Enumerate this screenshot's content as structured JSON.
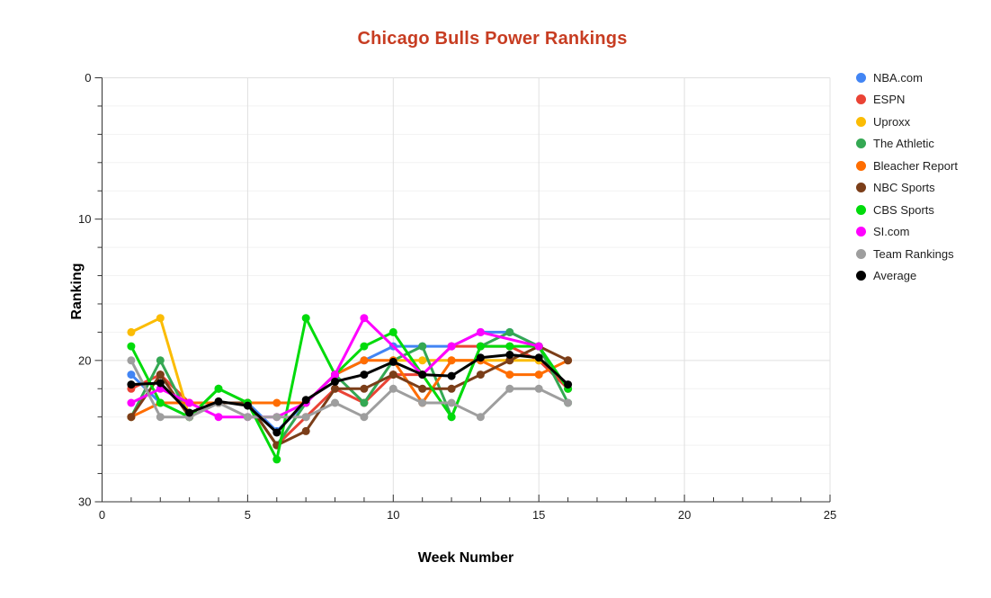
{
  "chart_data": {
    "type": "line",
    "title": "Chicago Bulls Power Rankings",
    "title_color": "#C73D22",
    "xlabel": "Week Number",
    "ylabel": "Ranking",
    "x": [
      1,
      2,
      3,
      4,
      5,
      6,
      7,
      8,
      9,
      10,
      11,
      12,
      13,
      14,
      15,
      16
    ],
    "xlim": [
      0,
      25
    ],
    "ylim": [
      0,
      30
    ],
    "y_axis_inverted": true,
    "x_ticks": [
      0,
      5,
      10,
      15,
      20,
      25
    ],
    "x_minor_tick_step": 1,
    "y_ticks": [
      0,
      10,
      20,
      30
    ],
    "y_minor_tick_step": 2,
    "grid": true,
    "legend_position": "right",
    "series": [
      {
        "name": "NBA.com",
        "color": "#4285F4",
        "values": [
          21,
          23,
          24,
          23,
          23,
          25,
          23,
          21,
          20,
          19,
          19,
          19,
          18,
          18,
          19,
          22
        ]
      },
      {
        "name": "ESPN",
        "color": "#EA4335",
        "values": [
          22,
          21,
          23,
          23,
          23,
          26,
          24,
          22,
          23,
          21,
          21,
          19,
          19,
          19,
          20,
          22
        ]
      },
      {
        "name": "Uproxx",
        "color": "#FBBC04",
        "values": [
          18,
          17,
          24,
          null,
          null,
          null,
          null,
          null,
          null,
          20,
          20,
          20,
          20,
          20,
          20,
          null
        ]
      },
      {
        "name": "The Athletic",
        "color": "#34A853",
        "values": [
          24,
          20,
          24,
          22,
          23,
          26,
          23,
          21,
          23,
          20,
          19,
          24,
          19,
          18,
          19,
          23
        ]
      },
      {
        "name": "Bleacher Report",
        "color": "#FF6D01",
        "values": [
          24,
          23,
          23,
          23,
          23,
          23,
          23,
          21,
          20,
          20,
          23,
          20,
          20,
          21,
          21,
          20
        ]
      },
      {
        "name": "NBC Sports",
        "color": "#7B3E19",
        "values": [
          24,
          21,
          24,
          23,
          23,
          26,
          25,
          22,
          22,
          21,
          22,
          22,
          21,
          20,
          19,
          20
        ]
      },
      {
        "name": "CBS Sports",
        "color": "#00DB0B",
        "values": [
          19,
          23,
          24,
          22,
          23,
          27,
          17,
          21,
          19,
          18,
          21,
          24,
          19,
          19,
          19,
          22
        ]
      },
      {
        "name": "SI.com",
        "color": "#FF00FF",
        "values": [
          23,
          22,
          23,
          24,
          24,
          24,
          23,
          21,
          17,
          null,
          21,
          19,
          18,
          null,
          19,
          null
        ]
      },
      {
        "name": "Team Rankings",
        "color": "#9E9E9E",
        "values": [
          20,
          24,
          24,
          23,
          24,
          24,
          24,
          23,
          24,
          22,
          23,
          23,
          24,
          22,
          22,
          23
        ]
      },
      {
        "name": "Average",
        "color": "#000000",
        "values": [
          21.7,
          21.6,
          23.7,
          22.9,
          23.2,
          25.1,
          22.8,
          21.5,
          21.0,
          20.1,
          21.0,
          21.1,
          19.8,
          19.6,
          19.8,
          21.7
        ]
      }
    ]
  }
}
